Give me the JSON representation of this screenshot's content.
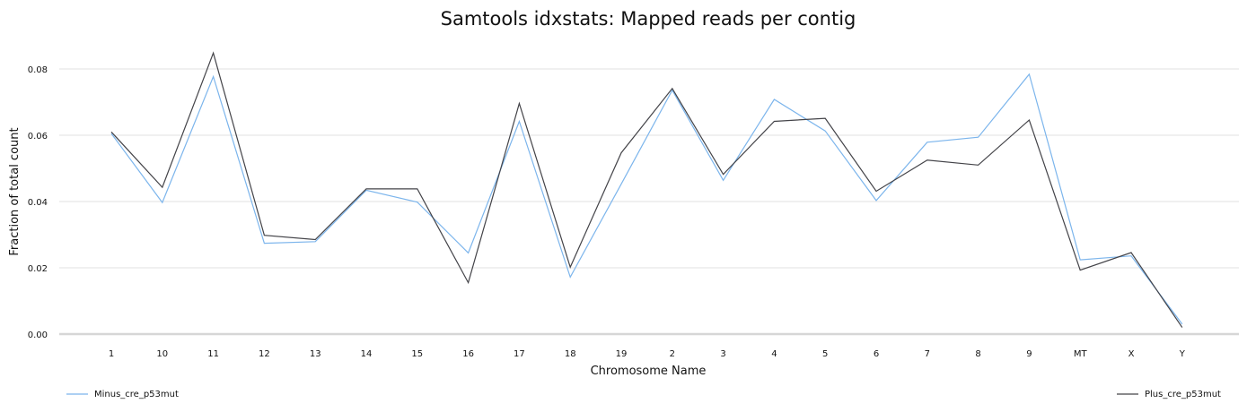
{
  "chart_data": {
    "type": "line",
    "title": "Samtools idxstats: Mapped reads per contig",
    "xlabel": "Chromosome Name",
    "ylabel": "Fraction of total count",
    "categories": [
      "1",
      "10",
      "11",
      "12",
      "13",
      "14",
      "15",
      "16",
      "17",
      "18",
      "19",
      "2",
      "3",
      "4",
      "5",
      "6",
      "7",
      "8",
      "9",
      "MT",
      "X",
      "Y"
    ],
    "ylim": [
      0,
      0.09
    ],
    "yticks": [
      "0.00",
      "0.02",
      "0.04",
      "0.06",
      "0.08"
    ],
    "grid": true,
    "legend_placement": "bottom",
    "series": [
      {
        "name": "Minus_cre_p53mut",
        "color": "#7cb5ec",
        "values": [
          0.0605,
          0.0397,
          0.0777,
          0.0274,
          0.0279,
          0.0434,
          0.0398,
          0.0245,
          0.0642,
          0.0172,
          0.0453,
          0.0736,
          0.0464,
          0.0708,
          0.0613,
          0.0403,
          0.0579,
          0.0594,
          0.0784,
          0.0224,
          0.0236,
          0.003
        ]
      },
      {
        "name": "Plus_cre_p53mut",
        "color": "#434348",
        "values": [
          0.061,
          0.0443,
          0.0848,
          0.0298,
          0.0285,
          0.0438,
          0.0438,
          0.0155,
          0.0696,
          0.0202,
          0.0547,
          0.0741,
          0.0482,
          0.0642,
          0.0651,
          0.0431,
          0.0525,
          0.051,
          0.0646,
          0.0193,
          0.0246,
          0.002
        ]
      }
    ]
  }
}
